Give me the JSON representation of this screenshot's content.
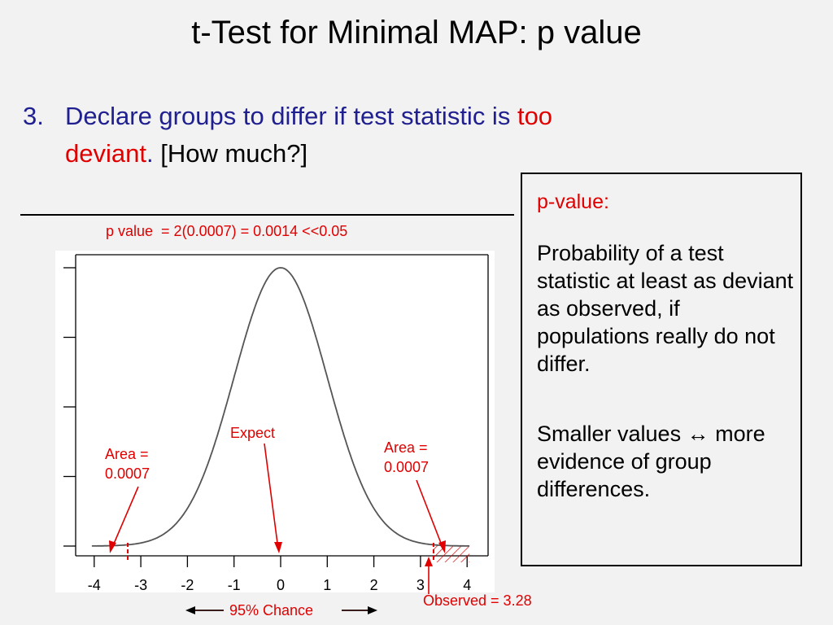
{
  "slide": {
    "title": "t-Test for Minimal MAP: p value",
    "point": {
      "number": "3.",
      "text_blue": "Declare groups to differ if test statistic is",
      "text_red_1": "too",
      "text_red_2": "deviant",
      "text_blue_end": ".",
      "text_black": "[How much?]"
    },
    "pvalue_formula": "p value  = 2(0.0007) = 0.0014 <<0.05",
    "box": {
      "heading": "p-value:",
      "definition": "Probability of a test statistic at least as deviant as observed, if populations really do not differ.",
      "note": "Smaller values ↔ more evidence of group differences."
    },
    "labels": {
      "expect": "Expect",
      "area_left_1": "Area =",
      "area_left_2": "0.0007",
      "area_right_1": "Area =",
      "area_right_2": "0.0007",
      "observed": "Observed = 3.28",
      "chance": "95% Chance"
    },
    "colors": {
      "accent": "#e00000",
      "text_blue": "#1f1f8f",
      "background": "#f2f2f2"
    }
  },
  "chart_data": {
    "type": "line",
    "title": "",
    "xlabel": "",
    "ylabel": "",
    "x_ticks": [
      -4,
      -3,
      -2,
      -1,
      0,
      1,
      2,
      3,
      4
    ],
    "xlim": [
      -4,
      4
    ],
    "distribution": "standard normal density",
    "expect_x": 0,
    "observed_x": 3.28,
    "critical_x": [
      -3.28,
      3.28
    ],
    "tail_area": 0.0007,
    "shaded_tail": "right"
  }
}
